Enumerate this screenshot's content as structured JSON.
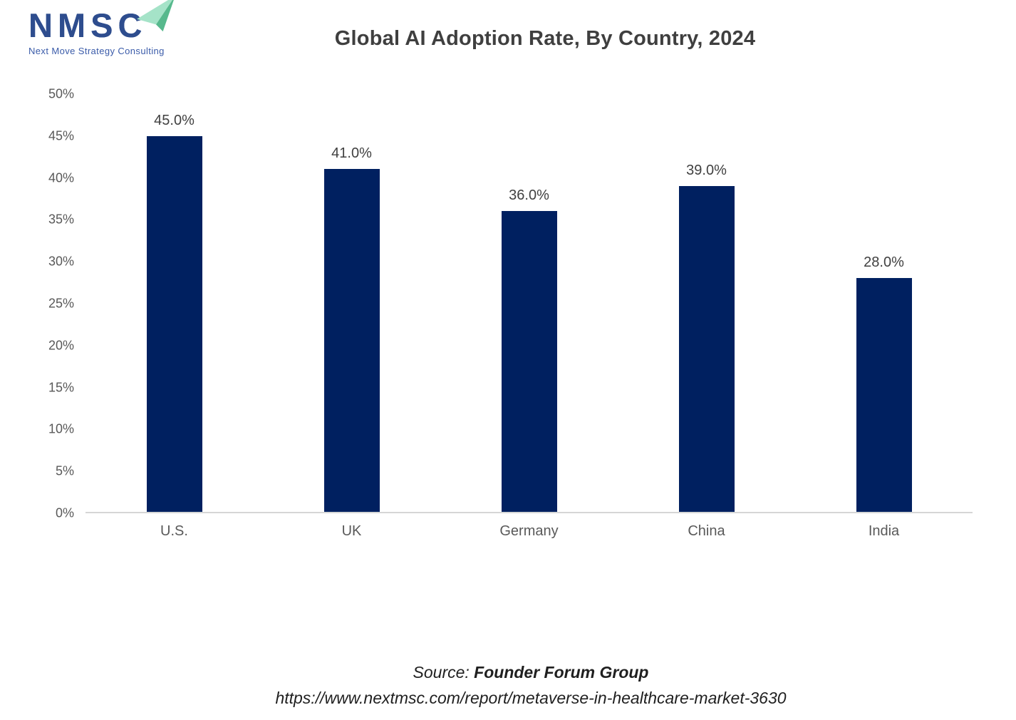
{
  "logo": {
    "acronym": "NMSC",
    "tagline": "Next Move Strategy Consulting",
    "navy": "#2e4d8e",
    "arrow_light": "#a5e3c8",
    "arrow_dark": "#57b98d"
  },
  "header": {
    "title": "Global AI Adoption Rate, By Country, 2024"
  },
  "chart_data": {
    "type": "bar",
    "title": "Global AI Adoption Rate, By Country, 2024",
    "categories": [
      "U.S.",
      "UK",
      "Germany",
      "China",
      "India"
    ],
    "values": [
      45.0,
      41.0,
      36.0,
      39.0,
      28.0
    ],
    "value_labels": [
      "45.0%",
      "41.0%",
      "36.0%",
      "39.0%",
      "28.0%"
    ],
    "yticks": [
      0,
      5,
      10,
      15,
      20,
      25,
      30,
      35,
      40,
      45,
      50
    ],
    "ytick_labels": [
      "0%",
      "5%",
      "10%",
      "15%",
      "20%",
      "25%",
      "30%",
      "35%",
      "40%",
      "45%",
      "50%"
    ],
    "ylim": [
      0,
      50
    ],
    "xlabel": "",
    "ylabel": "",
    "grid": false,
    "legend": false,
    "bar_color": "#002060",
    "axis_line_color": "#d6d6d6",
    "label_color": "#404040",
    "tick_color": "#595959"
  },
  "footer": {
    "source_prefix": "Source:",
    "source_name": "Founder Forum Group",
    "url": "https://www.nextmsc.com/report/metaverse-in-healthcare-market-3630"
  }
}
